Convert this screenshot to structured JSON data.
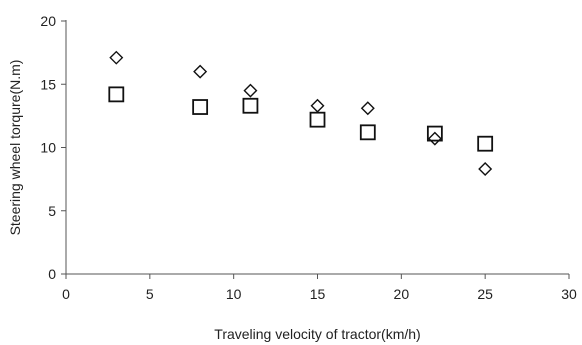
{
  "chart_data": {
    "type": "scatter",
    "xlabel": "Traveling velocity of tractor(km/h)",
    "ylabel": "Steering wheel torqure(N.m)",
    "xlim": [
      0,
      30
    ],
    "ylim": [
      0,
      20
    ],
    "x_ticks": [
      0,
      5,
      10,
      15,
      20,
      25,
      30
    ],
    "y_ticks": [
      0,
      5,
      10,
      15,
      20
    ],
    "grid": false,
    "legend": "none",
    "series": [
      {
        "marker": "diamond",
        "points": [
          {
            "x": 3,
            "y": 17.1
          },
          {
            "x": 8,
            "y": 16.0
          },
          {
            "x": 11,
            "y": 14.5
          },
          {
            "x": 15,
            "y": 13.3
          },
          {
            "x": 18,
            "y": 13.1
          },
          {
            "x": 22,
            "y": 10.7
          },
          {
            "x": 25,
            "y": 8.3
          }
        ]
      },
      {
        "marker": "square",
        "points": [
          {
            "x": 3,
            "y": 14.2
          },
          {
            "x": 8,
            "y": 13.2
          },
          {
            "x": 11,
            "y": 13.3
          },
          {
            "x": 15,
            "y": 12.2
          },
          {
            "x": 18,
            "y": 11.2
          },
          {
            "x": 22,
            "y": 11.1
          },
          {
            "x": 25,
            "y": 10.3
          }
        ]
      }
    ]
  }
}
